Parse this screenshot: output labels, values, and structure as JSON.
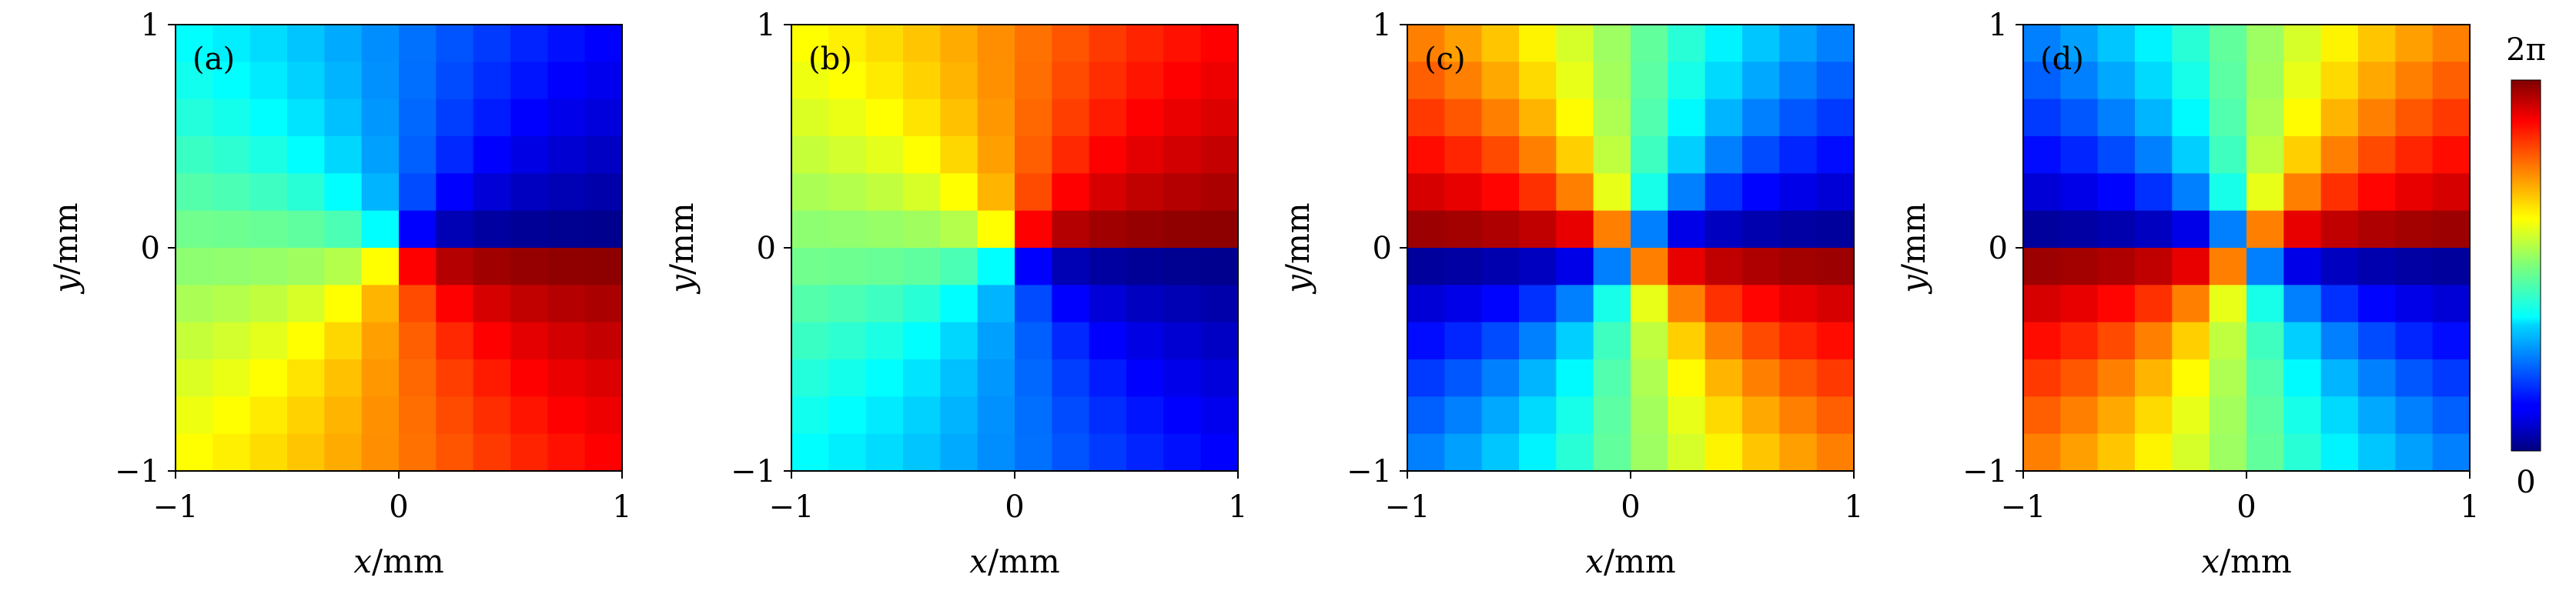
{
  "chart_data": {
    "type": "heatmap",
    "colormap": "jet",
    "grid": false,
    "colorbar": {
      "top_label": "2π",
      "bottom_label": "0",
      "range": [
        0,
        6.2832
      ]
    },
    "panels": [
      {
        "label": "(a)",
        "xlabel_var": "x",
        "xlabel_unit": "/mm",
        "ylabel_var": "y",
        "ylabel_unit": "/mm",
        "xlim": [
          -1,
          1
        ],
        "ylim": [
          -1,
          1
        ],
        "xticks": [
          "−1",
          "0",
          "1"
        ],
        "yticks": [
          "−1",
          "0",
          "1"
        ],
        "phase_function": "vortex",
        "charge": 1,
        "offset": 0
      },
      {
        "label": "(b)",
        "xlabel_var": "x",
        "xlabel_unit": "/mm",
        "ylabel_var": "y",
        "ylabel_unit": "/mm",
        "xlim": [
          -1,
          1
        ],
        "ylim": [
          -1,
          1
        ],
        "xticks": [
          "−1",
          "0",
          "1"
        ],
        "yticks": [
          "−1",
          "0",
          "1"
        ],
        "phase_function": "vortex",
        "charge": -1,
        "offset": 0
      },
      {
        "label": "(c)",
        "xlabel_var": "x",
        "xlabel_unit": "/mm",
        "ylabel_var": "y",
        "ylabel_unit": "/mm",
        "xlim": [
          -1,
          1
        ],
        "ylim": [
          -1,
          1
        ],
        "xticks": [
          "−1",
          "0",
          "1"
        ],
        "yticks": [
          "−1",
          "0",
          "1"
        ],
        "phase_function": "vortex",
        "charge": 2,
        "offset": 0
      },
      {
        "label": "(d)",
        "xlabel_var": "x",
        "xlabel_unit": "/mm",
        "ylabel_var": "y",
        "ylabel_unit": "/mm",
        "xlim": [
          -1,
          1
        ],
        "ylim": [
          -1,
          1
        ],
        "xticks": [
          "−1",
          "0",
          "1"
        ],
        "yticks": [
          "−1",
          "0",
          "1"
        ],
        "phase_function": "vortex",
        "charge": -2,
        "offset": 0
      }
    ]
  }
}
